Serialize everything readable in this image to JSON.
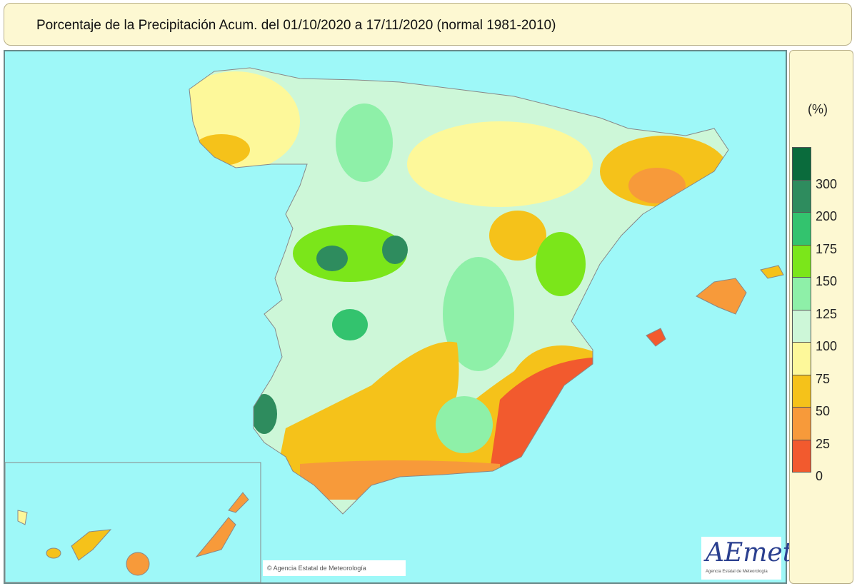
{
  "title": "Porcentaje de la Precipitación Acum. del 01/10/2020 a  17/11/2020  (normal 1981-2010)",
  "legend": {
    "unit": "(%)",
    "labels": [
      "300",
      "200",
      "175",
      "150",
      "125",
      "100",
      "75",
      "50",
      "25",
      "0"
    ],
    "colors": [
      "#0a6b3c",
      "#2e8c5e",
      "#33c36e",
      "#7be61a",
      "#8ef0a8",
      "#cdf7d8",
      "#fdf89a",
      "#f5c21a",
      "#f79a3a",
      "#f25a2e"
    ]
  },
  "copyright": "© Agencia Estatal de Meteorología",
  "logo": {
    "text": "AEmet",
    "subtitle": "Agencia Estatal de Meteorología"
  },
  "sea_color": "#9ef8f8"
}
